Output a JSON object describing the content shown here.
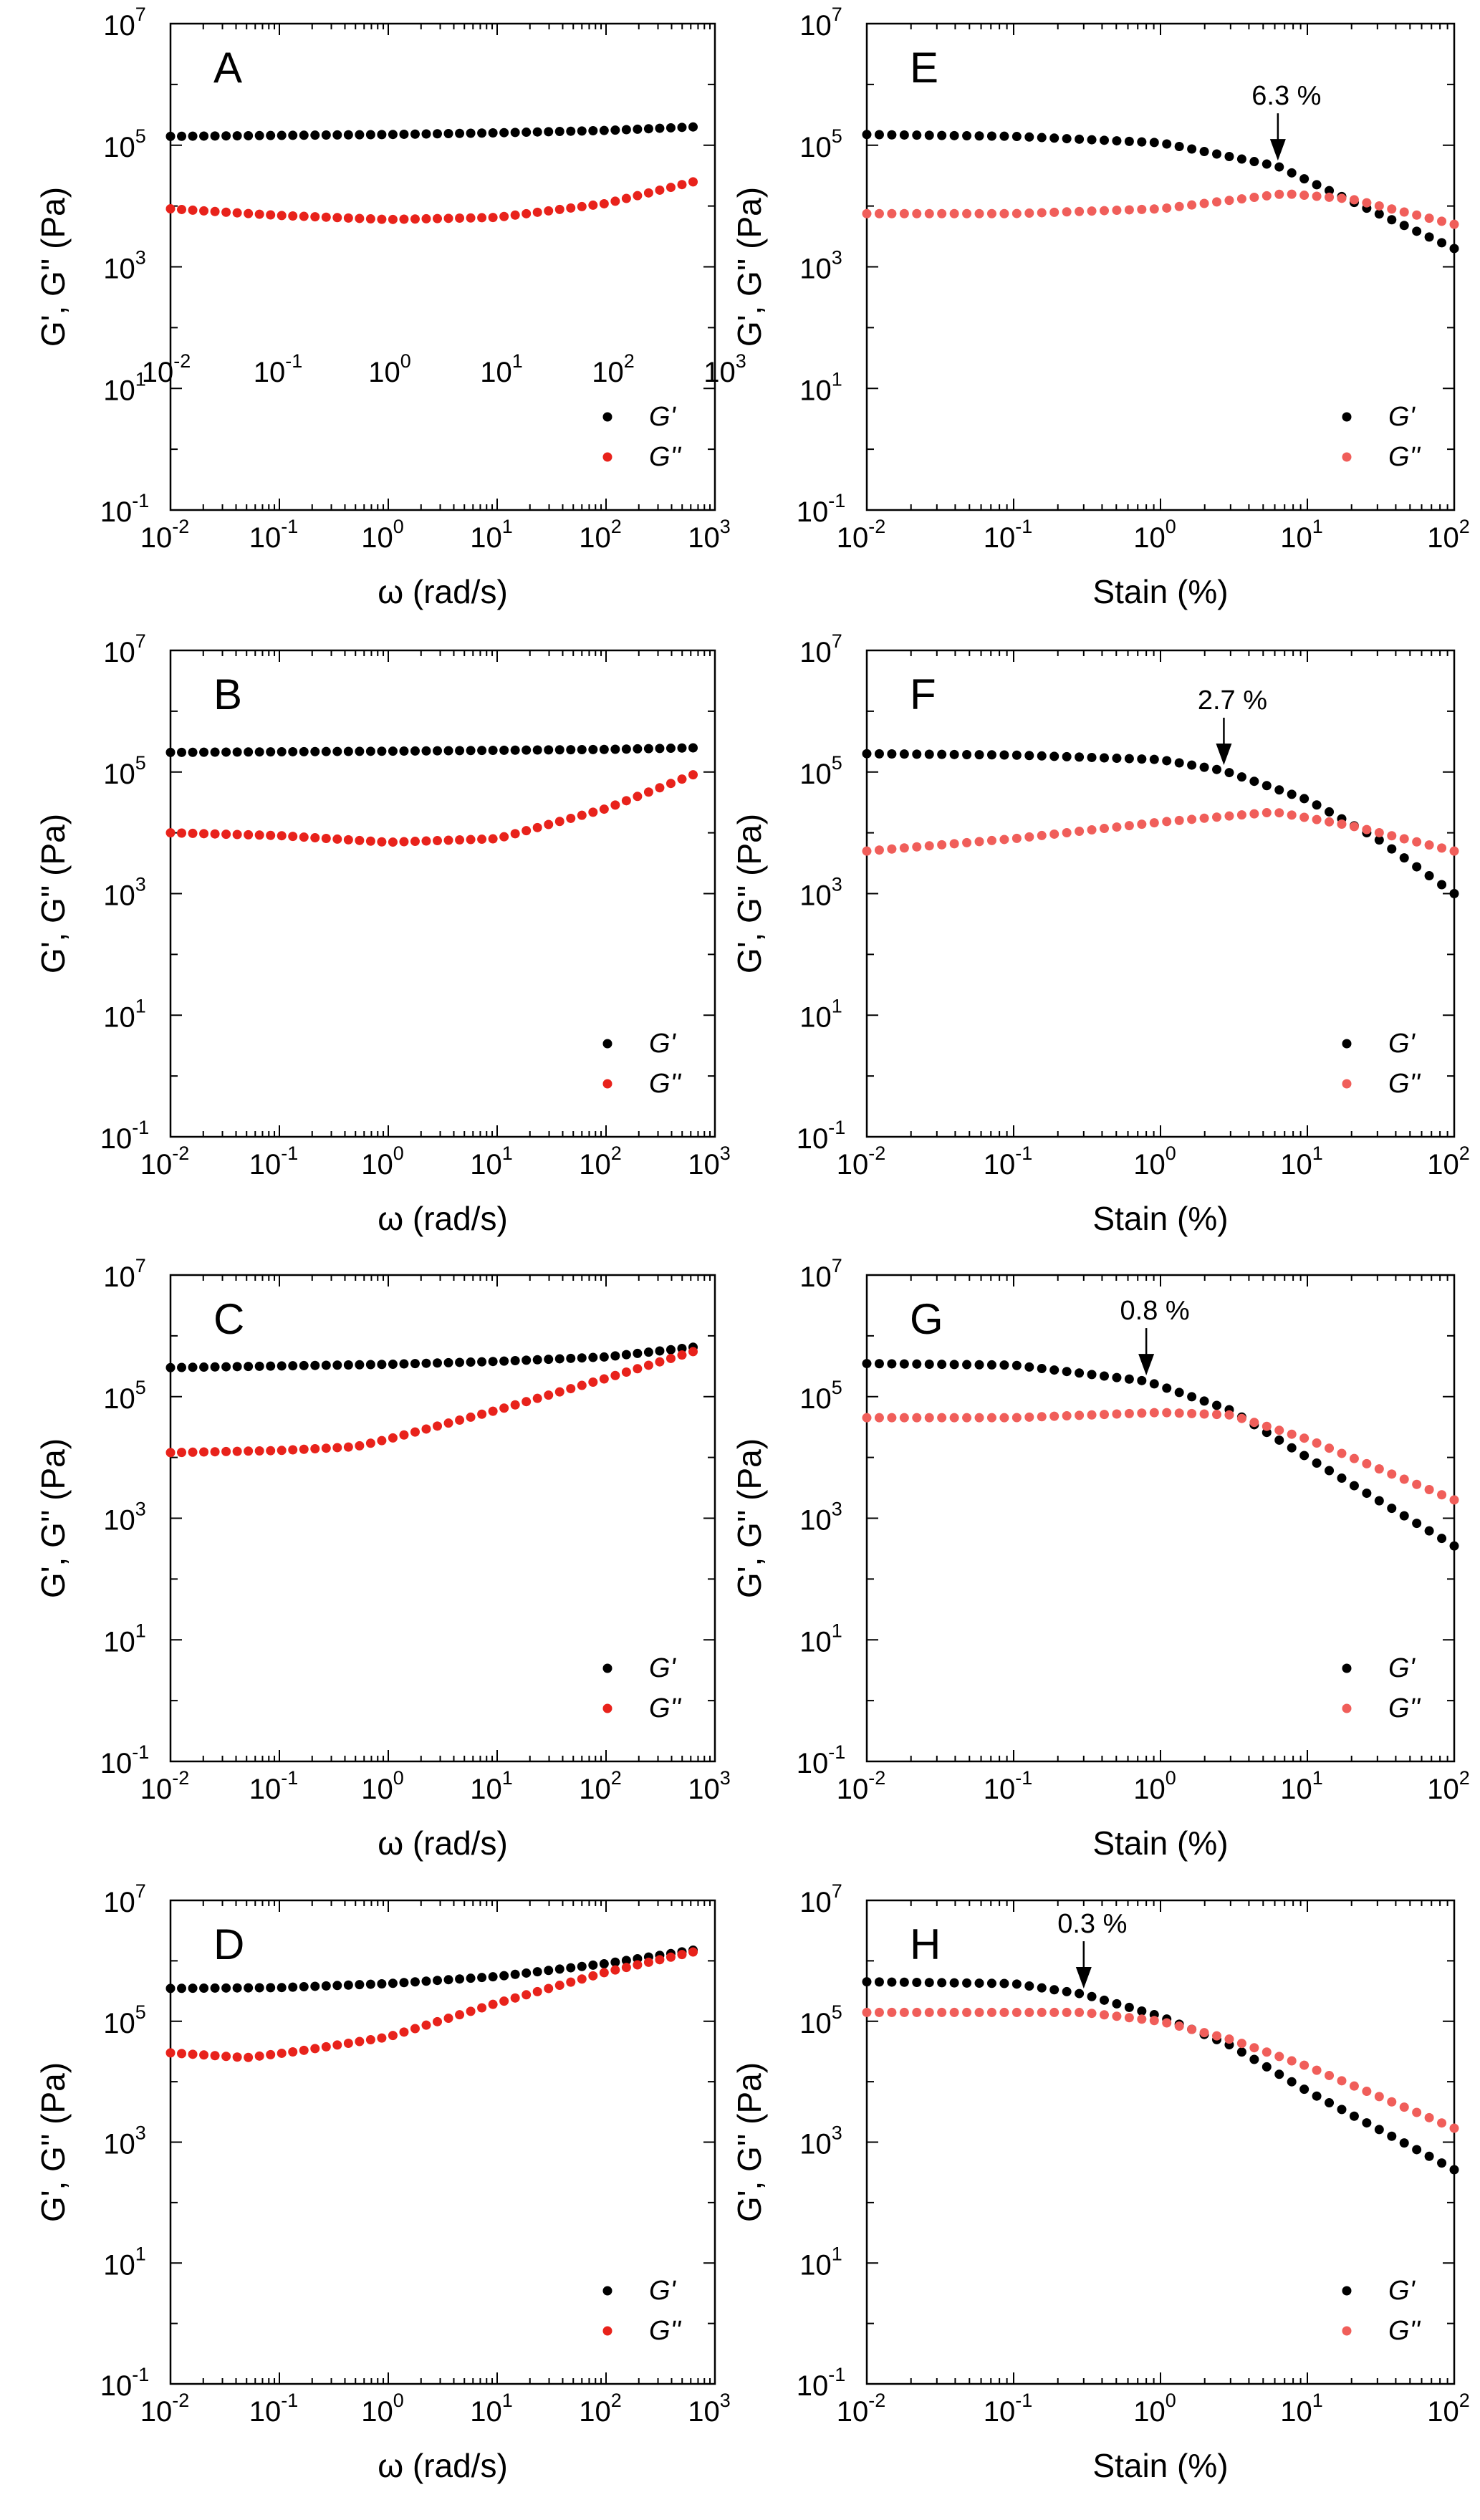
{
  "chart_data": [
    {
      "id": "A",
      "type": "scatter",
      "panel_label": "A",
      "xscale": "log",
      "yscale": "log",
      "xlim": [
        0.01,
        1000
      ],
      "ylim": [
        0.1,
        10000000
      ],
      "xlabel": "ω (rad/s)",
      "ylabel": "G', G'' (Pa)",
      "x_tick_labels": [
        "10",
        "10",
        "10",
        "10",
        "10",
        "10"
      ],
      "x_tick_exponents": [
        "-2",
        "-1",
        "0",
        "1",
        "2",
        "3"
      ],
      "y_tick_labels": [
        "10",
        "10",
        "10",
        "10",
        "10"
      ],
      "y_tick_exponents": [
        "-1",
        "1",
        "3",
        "5",
        "7"
      ],
      "inner_tick_labels": [
        "10",
        "10",
        "10",
        "10",
        "10",
        "10"
      ],
      "inner_tick_exponents": [
        "-2",
        "-1",
        "0",
        "1",
        "2",
        "3"
      ],
      "legend": [
        "G'",
        "G''"
      ],
      "legend_position": "bottom-right",
      "series": [
        {
          "name": "G'",
          "color": "#000000",
          "x_range": [
            0.01,
            630
          ],
          "points": [
            [
              0.01,
              140000
            ],
            [
              1,
              150000
            ],
            [
              10,
              160000
            ],
            [
              100,
              175000
            ],
            [
              630,
              200000
            ]
          ]
        },
        {
          "name": "G''",
          "color": "#e8221b",
          "x_range": [
            0.01,
            630
          ],
          "points": [
            [
              0.01,
              9000
            ],
            [
              0.1,
              7000
            ],
            [
              1,
              6000
            ],
            [
              10,
              6500
            ],
            [
              100,
              11000
            ],
            [
              630,
              25000
            ]
          ]
        }
      ]
    },
    {
      "id": "E",
      "type": "scatter",
      "panel_label": "E",
      "xscale": "log",
      "yscale": "log",
      "xlim": [
        0.01,
        100
      ],
      "ylim": [
        0.1,
        10000000
      ],
      "xlabel": "Stain (%)",
      "ylabel": "G', G'' (Pa)",
      "x_tick_labels": [
        "10",
        "10",
        "10",
        "10",
        "10"
      ],
      "x_tick_exponents": [
        "-2",
        "-1",
        "0",
        "1",
        "2"
      ],
      "y_tick_labels": [
        "10",
        "10",
        "10",
        "10",
        "10"
      ],
      "y_tick_exponents": [
        "-1",
        "1",
        "3",
        "5",
        "7"
      ],
      "legend": [
        "G'",
        "G''"
      ],
      "legend_position": "bottom-right",
      "annotation": {
        "text": "6.3 %",
        "x": 6.3,
        "y": 45000
      },
      "series": [
        {
          "name": "G'",
          "color": "#000000",
          "x_range": [
            0.01,
            100
          ],
          "points": [
            [
              0.01,
              150000
            ],
            [
              0.1,
              140000
            ],
            [
              1,
              110000
            ],
            [
              6.3,
              45000
            ],
            [
              20,
              12000
            ],
            [
              100,
              2000
            ]
          ]
        },
        {
          "name": "G''",
          "color": "#f05e5a",
          "x_range": [
            0.01,
            100
          ],
          "points": [
            [
              0.01,
              7500
            ],
            [
              0.1,
              7500
            ],
            [
              1,
              9000
            ],
            [
              7,
              16000
            ],
            [
              20,
              13000
            ],
            [
              100,
              5000
            ]
          ]
        }
      ]
    },
    {
      "id": "B",
      "type": "scatter",
      "panel_label": "B",
      "xscale": "log",
      "yscale": "log",
      "xlim": [
        0.01,
        1000
      ],
      "ylim": [
        0.1,
        10000000
      ],
      "xlabel": "ω (rad/s)",
      "ylabel": "G', G'' (Pa)",
      "x_tick_labels": [
        "10",
        "10",
        "10",
        "10",
        "10",
        "10"
      ],
      "x_tick_exponents": [
        "-2",
        "-1",
        "0",
        "1",
        "2",
        "3"
      ],
      "y_tick_labels": [
        "10",
        "10",
        "10",
        "10",
        "10"
      ],
      "y_tick_exponents": [
        "-1",
        "1",
        "3",
        "5",
        "7"
      ],
      "legend": [
        "G'",
        "G''"
      ],
      "legend_position": "bottom-right",
      "series": [
        {
          "name": "G'",
          "color": "#000000",
          "x_range": [
            0.01,
            630
          ],
          "points": [
            [
              0.01,
              210000
            ],
            [
              1,
              220000
            ],
            [
              100,
              235000
            ],
            [
              630,
              250000
            ]
          ]
        },
        {
          "name": "G''",
          "color": "#e8221b",
          "x_range": [
            0.01,
            630
          ],
          "points": [
            [
              0.01,
              10000
            ],
            [
              0.1,
              9000
            ],
            [
              1,
              7000
            ],
            [
              10,
              8000
            ],
            [
              100,
              25000
            ],
            [
              630,
              90000
            ]
          ]
        }
      ]
    },
    {
      "id": "F",
      "type": "scatter",
      "panel_label": "F",
      "xscale": "log",
      "yscale": "log",
      "xlim": [
        0.01,
        100
      ],
      "ylim": [
        0.1,
        10000000
      ],
      "xlabel": "Stain (%)",
      "ylabel": "G', G'' (Pa)",
      "x_tick_labels": [
        "10",
        "10",
        "10",
        "10",
        "10"
      ],
      "x_tick_exponents": [
        "-2",
        "-1",
        "0",
        "1",
        "2"
      ],
      "y_tick_labels": [
        "10",
        "10",
        "10",
        "10",
        "10"
      ],
      "y_tick_exponents": [
        "-1",
        "1",
        "3",
        "5",
        "7"
      ],
      "legend": [
        "G'",
        "G''"
      ],
      "legend_position": "bottom-right",
      "annotation": {
        "text": "2.7 %",
        "x": 2.7,
        "y": 105000
      },
      "series": [
        {
          "name": "G'",
          "color": "#000000",
          "x_range": [
            0.01,
            100
          ],
          "points": [
            [
              0.01,
              200000
            ],
            [
              0.1,
              190000
            ],
            [
              1,
              160000
            ],
            [
              2.7,
              105000
            ],
            [
              10,
              35000
            ],
            [
              30,
              8000
            ],
            [
              100,
              1000
            ]
          ]
        },
        {
          "name": "G''",
          "color": "#f05e5a",
          "x_range": [
            0.01,
            100
          ],
          "points": [
            [
              0.01,
              5000
            ],
            [
              0.1,
              8000
            ],
            [
              1,
              15000
            ],
            [
              6,
              22000
            ],
            [
              20,
              13000
            ],
            [
              100,
              5000
            ]
          ]
        }
      ]
    },
    {
      "id": "C",
      "type": "scatter",
      "panel_label": "C",
      "xscale": "log",
      "yscale": "log",
      "xlim": [
        0.01,
        1000
      ],
      "ylim": [
        0.1,
        10000000
      ],
      "xlabel": "ω (rad/s)",
      "ylabel": "G', G'' (Pa)",
      "x_tick_labels": [
        "10",
        "10",
        "10",
        "10",
        "10",
        "10"
      ],
      "x_tick_exponents": [
        "-2",
        "-1",
        "0",
        "1",
        "2",
        "3"
      ],
      "y_tick_labels": [
        "10",
        "10",
        "10",
        "10",
        "10"
      ],
      "y_tick_exponents": [
        "-1",
        "1",
        "3",
        "5",
        "7"
      ],
      "legend": [
        "G'",
        "G''"
      ],
      "legend_position": "bottom-right",
      "series": [
        {
          "name": "G'",
          "color": "#000000",
          "x_range": [
            0.01,
            630
          ],
          "points": [
            [
              0.01,
              300000
            ],
            [
              1,
              340000
            ],
            [
              10,
              380000
            ],
            [
              100,
              450000
            ],
            [
              630,
              650000
            ]
          ]
        },
        {
          "name": "G''",
          "color": "#e8221b",
          "x_range": [
            0.01,
            630
          ],
          "points": [
            [
              0.01,
              12000
            ],
            [
              0.1,
              13000
            ],
            [
              0.5,
              15000
            ],
            [
              1,
              20000
            ],
            [
              10,
              60000
            ],
            [
              100,
              200000
            ],
            [
              630,
              550000
            ]
          ]
        }
      ]
    },
    {
      "id": "G",
      "type": "scatter",
      "panel_label": "G",
      "xscale": "log",
      "yscale": "log",
      "xlim": [
        0.01,
        100
      ],
      "ylim": [
        0.1,
        10000000
      ],
      "xlabel": "Stain (%)",
      "ylabel": "G', G'' (Pa)",
      "x_tick_labels": [
        "10",
        "10",
        "10",
        "10",
        "10"
      ],
      "x_tick_exponents": [
        "-2",
        "-1",
        "0",
        "1",
        "2"
      ],
      "y_tick_labels": [
        "10",
        "10",
        "10",
        "10",
        "10"
      ],
      "y_tick_exponents": [
        "-1",
        "1",
        "3",
        "5",
        "7"
      ],
      "legend": [
        "G'",
        "G''"
      ],
      "legend_position": "bottom-right",
      "annotation": {
        "text": "0.8 %",
        "x": 0.8,
        "y": 180000
      },
      "series": [
        {
          "name": "G'",
          "color": "#000000",
          "x_range": [
            0.01,
            100
          ],
          "points": [
            [
              0.01,
              350000
            ],
            [
              0.1,
              330000
            ],
            [
              0.8,
              180000
            ],
            [
              3,
              60000
            ],
            [
              10,
              10000
            ],
            [
              100,
              350
            ]
          ]
        },
        {
          "name": "G''",
          "color": "#f05e5a",
          "x_range": [
            0.01,
            100
          ],
          "points": [
            [
              0.01,
              45000
            ],
            [
              0.1,
              45000
            ],
            [
              1,
              55000
            ],
            [
              3,
              50000
            ],
            [
              10,
              20000
            ],
            [
              100,
              2000
            ]
          ]
        }
      ]
    },
    {
      "id": "D",
      "type": "scatter",
      "panel_label": "D",
      "xscale": "log",
      "yscale": "log",
      "xlim": [
        0.01,
        1000
      ],
      "ylim": [
        0.1,
        10000000
      ],
      "xlabel": "ω (rad/s)",
      "ylabel": "G', G'' (Pa)",
      "x_tick_labels": [
        "10",
        "10",
        "10",
        "10",
        "10",
        "10"
      ],
      "x_tick_exponents": [
        "-2",
        "-1",
        "0",
        "1",
        "2",
        "3"
      ],
      "y_tick_labels": [
        "10",
        "10",
        "10",
        "10",
        "10"
      ],
      "y_tick_exponents": [
        "-1",
        "1",
        "3",
        "5",
        "7"
      ],
      "legend": [
        "G'",
        "G''"
      ],
      "legend_position": "bottom-right",
      "series": [
        {
          "name": "G'",
          "color": "#000000",
          "x_range": [
            0.01,
            630
          ],
          "points": [
            [
              0.01,
              350000
            ],
            [
              0.1,
              360000
            ],
            [
              1,
              420000
            ],
            [
              10,
              550000
            ],
            [
              100,
              900000
            ],
            [
              630,
              1500000
            ]
          ]
        },
        {
          "name": "G''",
          "color": "#e8221b",
          "x_range": [
            0.01,
            630
          ],
          "points": [
            [
              0.01,
              30000
            ],
            [
              0.05,
              25000
            ],
            [
              0.15,
              32000
            ],
            [
              1,
              55000
            ],
            [
              10,
              200000
            ],
            [
              100,
              650000
            ],
            [
              630,
              1400000
            ]
          ]
        }
      ]
    },
    {
      "id": "H",
      "type": "scatter",
      "panel_label": "H",
      "xscale": "log",
      "yscale": "log",
      "xlim": [
        0.01,
        100
      ],
      "ylim": [
        0.1,
        10000000
      ],
      "xlabel": "Stain (%)",
      "ylabel": "G', G'' (Pa)",
      "x_tick_labels": [
        "10",
        "10",
        "10",
        "10",
        "10"
      ],
      "x_tick_exponents": [
        "-2",
        "-1",
        "0",
        "1",
        "2"
      ],
      "y_tick_labels": [
        "10",
        "10",
        "10",
        "10",
        "10"
      ],
      "y_tick_exponents": [
        "-1",
        "1",
        "3",
        "5",
        "7"
      ],
      "legend": [
        "G'",
        "G''"
      ],
      "legend_position": "bottom-right",
      "annotation": {
        "text": "0.3 %",
        "x": 0.3,
        "y": 280000
      },
      "series": [
        {
          "name": "G'",
          "color": "#000000",
          "x_range": [
            0.01,
            100
          ],
          "points": [
            [
              0.01,
              450000
            ],
            [
              0.1,
              420000
            ],
            [
              0.3,
              280000
            ],
            [
              1,
              120000
            ],
            [
              3,
              40000
            ],
            [
              10,
              7000
            ],
            [
              100,
              350
            ]
          ]
        },
        {
          "name": "G''",
          "color": "#f05e5a",
          "x_range": [
            0.01,
            100
          ],
          "points": [
            [
              0.01,
              140000
            ],
            [
              0.3,
              140000
            ],
            [
              1,
              100000
            ],
            [
              3,
              50000
            ],
            [
              10,
              18000
            ],
            [
              100,
              1700
            ]
          ]
        }
      ]
    }
  ]
}
